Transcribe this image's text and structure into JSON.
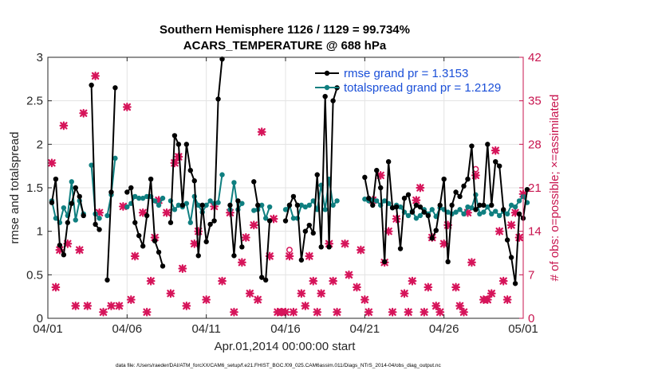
{
  "chart_data": {
    "type": "line",
    "title": "Southern Hemisphere 1126 / 1129 = 99.734%",
    "subtitle": "ACARS_TEMPERATURE @ 688 hPa",
    "xlabel": "Apr.01,2014 00:00:00 start",
    "ylabel": "rmse and totalspread",
    "y2label": "# of obs: o=possible; ×=assimilated",
    "footnote": "data file: /Users/raeder/DAI/ATM_forcXX/CAM6_setup/f.e21.FHIST_BGC.f09_025.CAM6assim.011/Diags_NTrS_2014-04/obs_diag_output.nc",
    "xlim": [
      0,
      30
    ],
    "ylim": [
      0,
      3
    ],
    "y2lim": [
      0,
      42
    ],
    "grid": true,
    "legend_position": "top-right",
    "colors": {
      "rmse": "#000000",
      "spread": "#0f7f80",
      "obs": "#d6145a",
      "axis_right": "#c8154f",
      "legend_text": "#1a4fd8"
    },
    "x_ticks": [
      0,
      5,
      10,
      15,
      20,
      25,
      30
    ],
    "x_tick_labels": [
      "04/01",
      "04/06",
      "04/11",
      "04/16",
      "04/21",
      "04/26",
      "05/01"
    ],
    "y_ticks": [
      0,
      0.5,
      1,
      1.5,
      2,
      2.5,
      3
    ],
    "y_tick_labels": [
      "0",
      "0.5",
      "1",
      "1.5",
      "2",
      "2.5",
      "3"
    ],
    "y2_ticks": [
      0,
      7,
      14,
      21,
      28,
      35,
      42
    ],
    "y2_tick_labels": [
      "0",
      "7",
      "14",
      "21",
      "28",
      "35",
      "42"
    ],
    "legend": [
      {
        "label": "rmse grand pr = 1.3153",
        "series": "rmse"
      },
      {
        "label": "totalspread grand pr = 1.2129",
        "series": "spread"
      }
    ],
    "series": [
      {
        "name": "rmse",
        "points": [
          [
            0.25,
            1.33
          ],
          [
            0.5,
            1.6
          ],
          [
            0.75,
            0.84
          ],
          [
            1.0,
            0.73
          ],
          [
            1.25,
            1.1
          ],
          [
            1.5,
            1.32
          ],
          [
            1.75,
            1.5
          ],
          [
            2.0,
            1.4
          ],
          [
            2.25,
            1.18
          ],
          [
            2.75,
            2.68
          ],
          [
            3.0,
            1.08
          ],
          [
            3.25,
            1.02
          ],
          [
            3.75,
            0.44
          ],
          [
            4.0,
            1.45
          ],
          [
            4.25,
            2.65
          ],
          [
            5.0,
            1.45
          ],
          [
            5.25,
            1.5
          ],
          [
            5.5,
            1.1
          ],
          [
            5.75,
            0.95
          ],
          [
            6.0,
            0.83
          ],
          [
            6.25,
            1.18
          ],
          [
            6.5,
            1.6
          ],
          [
            6.75,
            0.89
          ],
          [
            7.0,
            0.76
          ],
          [
            7.25,
            0.6
          ],
          [
            7.75,
            1.1
          ],
          [
            8.0,
            2.1
          ],
          [
            8.25,
            2.0
          ],
          [
            8.5,
            1.3
          ],
          [
            8.75,
            2.0
          ],
          [
            9.0,
            1.7
          ],
          [
            9.25,
            1.58
          ],
          [
            9.5,
            0.72
          ],
          [
            9.75,
            1.3
          ],
          [
            10.0,
            0.88
          ],
          [
            10.25,
            1.08
          ],
          [
            10.5,
            1.12
          ],
          [
            10.75,
            2.52
          ],
          [
            11.0,
            2.98
          ],
          [
            11.5,
            1.3
          ],
          [
            11.75,
            0.72
          ],
          [
            12.0,
            1.35
          ],
          [
            12.25,
            0.82
          ],
          [
            13.0,
            1.57
          ],
          [
            13.25,
            1.3
          ],
          [
            13.5,
            0.47
          ],
          [
            13.75,
            0.44
          ],
          [
            14.0,
            1.12
          ],
          [
            15.0,
            1.12
          ],
          [
            15.25,
            1.3
          ],
          [
            15.5,
            1.4
          ],
          [
            15.75,
            1.3
          ],
          [
            16.0,
            0.67
          ],
          [
            16.25,
            1.0
          ],
          [
            16.5,
            1.07
          ],
          [
            16.75,
            0.98
          ],
          [
            17.0,
            1.65
          ],
          [
            17.25,
            0.82
          ],
          [
            17.5,
            2.55
          ],
          [
            17.75,
            0.82
          ],
          [
            18.0,
            2.5
          ],
          [
            18.25,
            2.65
          ],
          [
            20.0,
            1.62
          ],
          [
            20.25,
            1.38
          ],
          [
            20.5,
            1.3
          ],
          [
            20.75,
            1.7
          ],
          [
            21.0,
            1.5
          ],
          [
            21.25,
            0.65
          ],
          [
            21.5,
            1.8
          ],
          [
            21.75,
            1.27
          ],
          [
            22.0,
            1.28
          ],
          [
            22.25,
            0.8
          ],
          [
            22.5,
            1.38
          ],
          [
            22.75,
            1.42
          ],
          [
            23.0,
            1.22
          ],
          [
            23.25,
            1.3
          ],
          [
            23.5,
            1.28
          ],
          [
            23.75,
            1.22
          ],
          [
            24.0,
            1.18
          ],
          [
            24.25,
            0.92
          ],
          [
            24.5,
            1.01
          ],
          [
            24.75,
            1.3
          ],
          [
            25.0,
            1.6
          ],
          [
            25.25,
            0.65
          ],
          [
            25.5,
            1.3
          ],
          [
            25.75,
            1.45
          ],
          [
            26.0,
            1.4
          ],
          [
            26.25,
            1.52
          ],
          [
            26.5,
            1.6
          ],
          [
            26.75,
            1.98
          ],
          [
            27.0,
            1.25
          ],
          [
            27.25,
            1.3
          ],
          [
            27.5,
            1.3
          ],
          [
            27.75,
            2.0
          ],
          [
            28.0,
            1.3
          ],
          [
            28.25,
            1.8
          ],
          [
            28.5,
            1.75
          ],
          [
            28.75,
            1.25
          ],
          [
            29.0,
            0.9
          ],
          [
            29.25,
            0.7
          ],
          [
            29.5,
            0.4
          ],
          [
            29.75,
            1.2
          ],
          [
            30.0,
            1.15
          ],
          [
            30.25,
            1.48
          ]
        ]
      },
      {
        "name": "totalspread",
        "points": [
          [
            0.25,
            1.35
          ],
          [
            0.5,
            1.15
          ],
          [
            0.75,
            1.1
          ],
          [
            1.0,
            1.27
          ],
          [
            1.25,
            1.18
          ],
          [
            1.5,
            1.57
          ],
          [
            1.75,
            1.13
          ],
          [
            2.0,
            1.35
          ],
          [
            2.25,
            1.2
          ],
          [
            2.75,
            1.76
          ],
          [
            3.0,
            1.2
          ],
          [
            3.25,
            1.15
          ],
          [
            3.75,
            1.18
          ],
          [
            4.0,
            1.42
          ],
          [
            4.25,
            1.84
          ],
          [
            5.0,
            1.28
          ],
          [
            5.25,
            1.32
          ],
          [
            5.5,
            1.4
          ],
          [
            5.75,
            1.38
          ],
          [
            6.0,
            1.38
          ],
          [
            6.25,
            1.4
          ],
          [
            6.5,
            1.4
          ],
          [
            6.75,
            1.35
          ],
          [
            7.0,
            1.3
          ],
          [
            7.25,
            1.38
          ],
          [
            7.75,
            1.35
          ],
          [
            8.0,
            1.25
          ],
          [
            8.25,
            1.3
          ],
          [
            8.5,
            1.28
          ],
          [
            8.75,
            1.32
          ],
          [
            9.0,
            1.1
          ],
          [
            9.25,
            1.4
          ],
          [
            9.5,
            1.3
          ],
          [
            9.75,
            1.22
          ],
          [
            10.0,
            1.3
          ],
          [
            10.25,
            1.35
          ],
          [
            10.5,
            1.32
          ],
          [
            10.75,
            1.33
          ],
          [
            11.0,
            1.65
          ],
          [
            11.5,
            1.25
          ],
          [
            11.75,
            1.56
          ],
          [
            12.0,
            1.25
          ],
          [
            12.25,
            1.32
          ],
          [
            13.0,
            1.24
          ],
          [
            13.25,
            1.25
          ],
          [
            13.5,
            1.3
          ],
          [
            13.75,
            1.15
          ],
          [
            14.0,
            1.28
          ],
          [
            15.0,
            1.25
          ],
          [
            15.25,
            1.3
          ],
          [
            15.5,
            1.15
          ],
          [
            15.75,
            1.15
          ],
          [
            16.0,
            1.3
          ],
          [
            16.25,
            1.28
          ],
          [
            16.5,
            1.3
          ],
          [
            16.75,
            1.35
          ],
          [
            17.0,
            1.25
          ],
          [
            17.25,
            1.53
          ],
          [
            17.5,
            1.25
          ],
          [
            17.75,
            1.6
          ],
          [
            18.0,
            1.3
          ],
          [
            18.25,
            1.35
          ],
          [
            20.0,
            1.37
          ],
          [
            20.25,
            1.35
          ],
          [
            20.5,
            1.36
          ],
          [
            20.75,
            1.35
          ],
          [
            21.0,
            1.3
          ],
          [
            21.25,
            1.35
          ],
          [
            21.5,
            1.32
          ],
          [
            21.75,
            1.27
          ],
          [
            22.0,
            1.3
          ],
          [
            22.25,
            1.28
          ],
          [
            22.5,
            1.22
          ],
          [
            22.75,
            1.18
          ],
          [
            23.0,
            1.23
          ],
          [
            23.25,
            1.15
          ],
          [
            23.5,
            1.18
          ],
          [
            23.75,
            1.25
          ],
          [
            24.0,
            1.2
          ],
          [
            24.25,
            1.25
          ],
          [
            24.5,
            1.17
          ],
          [
            24.75,
            1.27
          ],
          [
            25.0,
            1.25
          ],
          [
            25.25,
            1.22
          ],
          [
            25.5,
            1.2
          ],
          [
            25.75,
            1.22
          ],
          [
            26.0,
            1.25
          ],
          [
            26.25,
            1.2
          ],
          [
            26.5,
            1.28
          ],
          [
            26.75,
            1.27
          ],
          [
            27.0,
            1.42
          ],
          [
            27.25,
            1.2
          ],
          [
            27.5,
            1.22
          ],
          [
            27.75,
            1.28
          ],
          [
            28.0,
            1.2
          ],
          [
            28.25,
            1.23
          ],
          [
            28.5,
            1.18
          ],
          [
            28.75,
            1.23
          ],
          [
            29.0,
            1.2
          ],
          [
            29.25,
            1.3
          ],
          [
            29.5,
            1.28
          ],
          [
            29.75,
            1.35
          ],
          [
            30.0,
            1.4
          ],
          [
            30.25,
            1.33
          ]
        ]
      }
    ],
    "obs_assimilated": [
      [
        0.25,
        25
      ],
      [
        0.5,
        5
      ],
      [
        0.75,
        11
      ],
      [
        1.0,
        31
      ],
      [
        1.25,
        12
      ],
      [
        1.75,
        2
      ],
      [
        2.0,
        11
      ],
      [
        2.25,
        33
      ],
      [
        2.5,
        2
      ],
      [
        3.0,
        39
      ],
      [
        3.25,
        17
      ],
      [
        3.5,
        1
      ],
      [
        4.0,
        2
      ],
      [
        4.5,
        2
      ],
      [
        4.75,
        18
      ],
      [
        5.0,
        34
      ],
      [
        5.25,
        3
      ],
      [
        5.5,
        10
      ],
      [
        6.0,
        17
      ],
      [
        6.25,
        1
      ],
      [
        6.5,
        6
      ],
      [
        6.75,
        13
      ],
      [
        7.0,
        19
      ],
      [
        7.5,
        17
      ],
      [
        7.75,
        4
      ],
      [
        8.0,
        25
      ],
      [
        8.25,
        26
      ],
      [
        8.5,
        8
      ],
      [
        8.75,
        2
      ],
      [
        9.25,
        12
      ],
      [
        9.5,
        14
      ],
      [
        10.0,
        3
      ],
      [
        10.5,
        18
      ],
      [
        11.0,
        6
      ],
      [
        11.5,
        17
      ],
      [
        11.75,
        1
      ],
      [
        12.25,
        9
      ],
      [
        12.5,
        13
      ],
      [
        12.75,
        4
      ],
      [
        13.0,
        15
      ],
      [
        13.25,
        3
      ],
      [
        13.5,
        30
      ],
      [
        14.0,
        10
      ],
      [
        14.25,
        16
      ],
      [
        14.5,
        1
      ],
      [
        14.75,
        1
      ],
      [
        15.0,
        1
      ],
      [
        15.25,
        10
      ],
      [
        15.5,
        1
      ],
      [
        16.0,
        4
      ],
      [
        16.25,
        2
      ],
      [
        16.5,
        10
      ],
      [
        16.75,
        6
      ],
      [
        17.0,
        1
      ],
      [
        17.25,
        4
      ],
      [
        17.75,
        12
      ],
      [
        18.0,
        6
      ],
      [
        18.25,
        1
      ],
      [
        18.75,
        12
      ],
      [
        19.0,
        7
      ],
      [
        19.5,
        5
      ],
      [
        19.75,
        11
      ],
      [
        20.0,
        3
      ],
      [
        20.25,
        1
      ],
      [
        20.5,
        19
      ],
      [
        21.0,
        23
      ],
      [
        21.25,
        9
      ],
      [
        21.5,
        14
      ],
      [
        21.75,
        1
      ],
      [
        22.0,
        16
      ],
      [
        22.5,
        4
      ],
      [
        22.75,
        1
      ],
      [
        23.0,
        6
      ],
      [
        23.25,
        19
      ],
      [
        23.5,
        21
      ],
      [
        23.75,
        1
      ],
      [
        24.0,
        5
      ],
      [
        24.25,
        13
      ],
      [
        24.5,
        2
      ],
      [
        24.75,
        1
      ],
      [
        25.0,
        12
      ],
      [
        25.25,
        15
      ],
      [
        25.75,
        5
      ],
      [
        26.0,
        2
      ],
      [
        26.25,
        1
      ],
      [
        26.5,
        17
      ],
      [
        26.75,
        9
      ],
      [
        27.0,
        23
      ],
      [
        27.5,
        3
      ],
      [
        27.75,
        3
      ],
      [
        28.0,
        4
      ],
      [
        28.25,
        27
      ],
      [
        28.5,
        14
      ],
      [
        28.75,
        6
      ],
      [
        29.0,
        3
      ],
      [
        29.25,
        15
      ],
      [
        29.5,
        17
      ],
      [
        29.75,
        13
      ],
      [
        30.0,
        20
      ]
    ],
    "obs_possible": [
      [
        8.25,
        26
      ],
      [
        15.25,
        11
      ],
      [
        27.0,
        24
      ]
    ]
  }
}
